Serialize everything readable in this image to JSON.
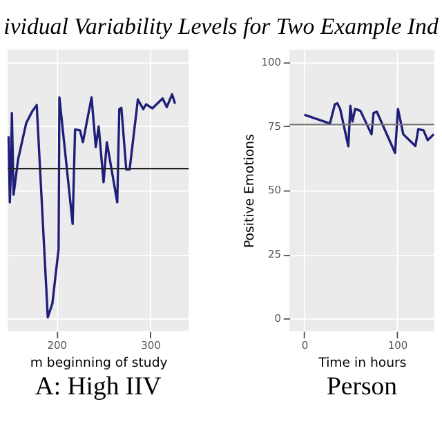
{
  "chart_data": [
    {
      "type": "line",
      "title": "ividual Variability Levels for Two Example Ind",
      "xlabel": "m beginning of study",
      "annotations": [
        "A: High IIV"
      ],
      "xlim": [
        148,
        341
      ],
      "xticks": [
        200,
        300
      ],
      "ylim": [
        -5,
        105
      ],
      "yticks": [
        0,
        25,
        50,
        75,
        100
      ],
      "tick_labels": "x",
      "grid": true,
      "ref_lines": [
        {
          "axis": "y",
          "value": 58.5,
          "color": "#222222"
        }
      ],
      "series": [
        {
          "color": "#1f1f7a",
          "x": [
            148.9,
            150.2,
            151.5,
            152.4,
            154.2,
            159,
            167.8,
            174.4,
            178.9,
            190.7,
            195.6,
            202.2,
            203.1,
            217.2,
            219.8,
            225.1,
            228.2,
            237.4,
            241.9,
            245,
            250.2,
            253.7,
            264.8,
            267,
            269.2,
            274.4,
            278,
            286.8,
            292.5,
            295.6,
            302.2,
            313.2,
            317.6,
            323.3,
            326.4
          ],
          "values": [
            71.1,
            45.3,
            59,
            80.2,
            48.3,
            62,
            76.4,
            81,
            83.3,
            0.4,
            5.8,
            27,
            86.3,
            36.9,
            73.8,
            73.4,
            68.8,
            86.3,
            66.9,
            74.9,
            53.2,
            68.8,
            45.3,
            81.7,
            82.2,
            58.2,
            58.2,
            85.5,
            81.7,
            83.6,
            82,
            85.9,
            82.5,
            87.5,
            83.9
          ]
        }
      ]
    },
    {
      "type": "line",
      "xlabel": "Time in hours",
      "ylabel": "Positive Emotions",
      "annotations": [
        "Person"
      ],
      "xlim": [
        -16,
        140
      ],
      "xticks": [
        0,
        100
      ],
      "ylim": [
        -5,
        105
      ],
      "yticks": [
        0,
        25,
        50,
        75,
        100
      ],
      "grid": true,
      "ref_lines": [
        {
          "axis": "y",
          "value": 75.7,
          "color": "#777777"
        }
      ],
      "series": [
        {
          "color": "#1f1f7a",
          "x": [
            0,
            27.6,
            32.9,
            35.5,
            38.6,
            47.4,
            49.6,
            51.8,
            54.8,
            60.5,
            72.4,
            74.6,
            78.1,
            97.8,
            100.9,
            106.6,
            119.7,
            122.8,
            128.5,
            132.9,
            139.5
          ],
          "values": [
            79.5,
            76.1,
            83.6,
            84,
            81.8,
            67.2,
            83,
            76.9,
            81.8,
            81,
            71.9,
            80.2,
            80.7,
            64.6,
            81.8,
            71.9,
            67.3,
            73.9,
            73.4,
            69.6,
            71.9
          ]
        }
      ]
    }
  ]
}
